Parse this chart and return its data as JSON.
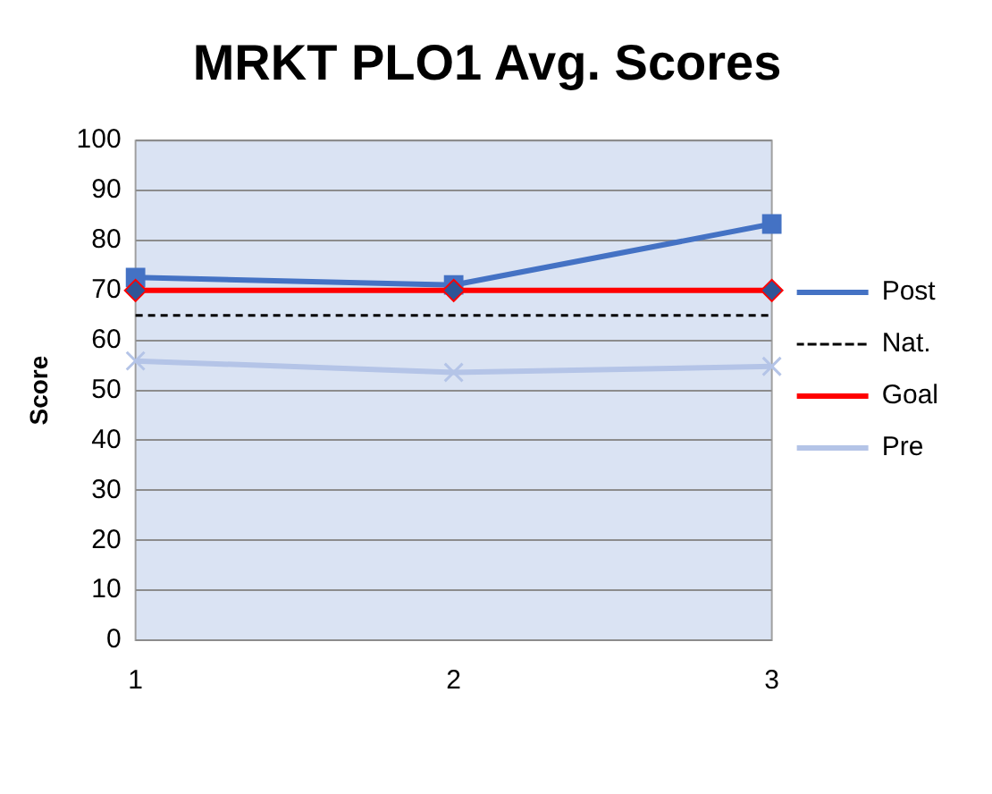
{
  "chart_data": {
    "type": "line",
    "title": "MRKT PLO1 Avg. Scores",
    "ylabel": "Score",
    "categories": [
      "1",
      "2",
      "3"
    ],
    "ylim": [
      0,
      100
    ],
    "yticks": [
      0,
      10,
      20,
      30,
      40,
      50,
      60,
      70,
      80,
      90,
      100
    ],
    "grid": "y",
    "legend": "right",
    "series": [
      {
        "name": "Post",
        "color": "#4472c4",
        "values": [
          72.6,
          71.1,
          83.3
        ],
        "marker": "square",
        "line_style": "solid"
      },
      {
        "name": "Nat.",
        "color": "#000000",
        "values": [
          65,
          65,
          65
        ],
        "marker": "none",
        "line_style": "dashed"
      },
      {
        "name": "Goal",
        "color": "#ff0000",
        "values": [
          70,
          70,
          70
        ],
        "marker": "diamond",
        "line_style": "solid"
      },
      {
        "name": "Pre",
        "color": "#b4c4e7",
        "values": [
          55.9,
          53.6,
          54.8
        ],
        "marker": "cross",
        "line_style": "solid"
      }
    ]
  }
}
